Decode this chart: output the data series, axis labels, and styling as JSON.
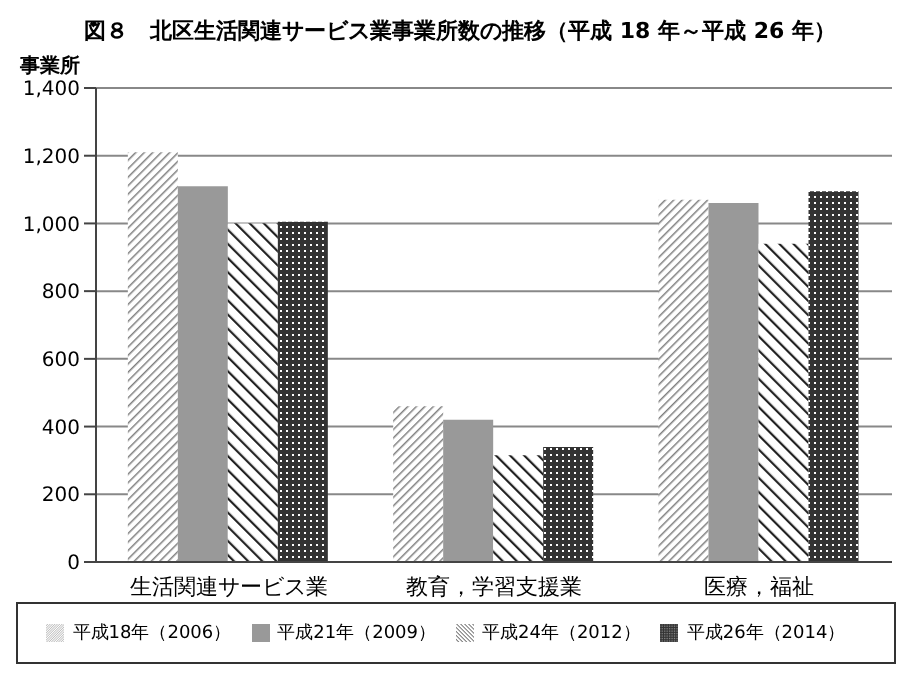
{
  "chart_data": {
    "type": "bar",
    "title": "図８　北区生活関連サービス業事業所数の推移（平成 18 年～平成 26 年）",
    "ylabel": "事業所",
    "categories": [
      "生活関連サービス業",
      "教育，学習支援業",
      "医療，福祉"
    ],
    "series": [
      {
        "name": "平成18年（2006）",
        "color": "#808080",
        "values": [
          1210,
          460,
          1070
        ]
      },
      {
        "name": "平成21年（2009）",
        "color": "#999999",
        "values": [
          1110,
          420,
          1060
        ]
      },
      {
        "name": "平成24年（2012）",
        "color": "#222222",
        "values": [
          1000,
          315,
          940
        ]
      },
      {
        "name": "平成26年（2014）",
        "color": "#333333",
        "values": [
          1005,
          340,
          1095
        ]
      }
    ],
    "ylim": [
      0,
      1400
    ],
    "yticks": [
      0,
      200,
      400,
      600,
      800,
      {
        "value": 1000,
        "label": "1,000"
      },
      {
        "value": 1200,
        "label": "1,200"
      },
      {
        "value": 1400,
        "label": "1,400"
      }
    ],
    "grid": "y",
    "legend": "bottom"
  }
}
